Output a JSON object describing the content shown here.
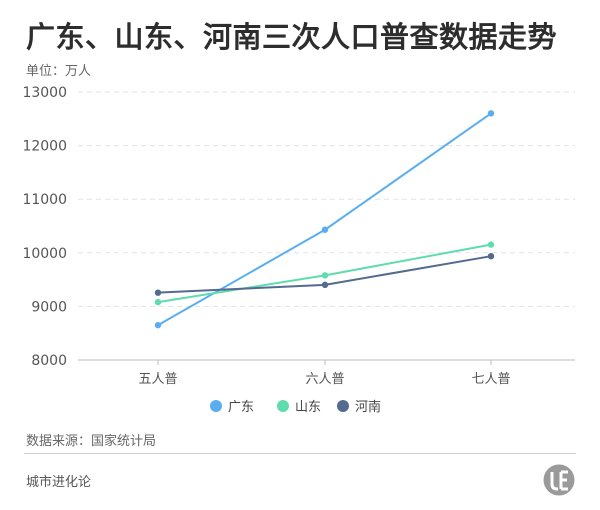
{
  "header": {
    "title": "广东、山东、河南三次人口普查数据走势",
    "unit": "单位：万人"
  },
  "footer": {
    "source": "数据来源：国家统计局",
    "brand": "城市进化论"
  },
  "colors": {
    "广东": "#5aaef0",
    "山东": "#5fdcae",
    "河南": "#546a8e",
    "grid": "#e3e3e3",
    "axis_text": "#555555"
  },
  "chart_data": {
    "type": "line",
    "categories": [
      "五人普",
      "六人普",
      "七人普"
    ],
    "series": [
      {
        "name": "广东",
        "values": [
          8650,
          10430,
          12601
        ]
      },
      {
        "name": "山东",
        "values": [
          9080,
          9579,
          10153
        ]
      },
      {
        "name": "河南",
        "values": [
          9256,
          9402,
          9937
        ]
      }
    ],
    "y_ticks": [
      8000,
      9000,
      10000,
      11000,
      12000,
      13000
    ],
    "ylim": [
      8000,
      13000
    ],
    "grid": true,
    "legend_position": "bottom"
  }
}
